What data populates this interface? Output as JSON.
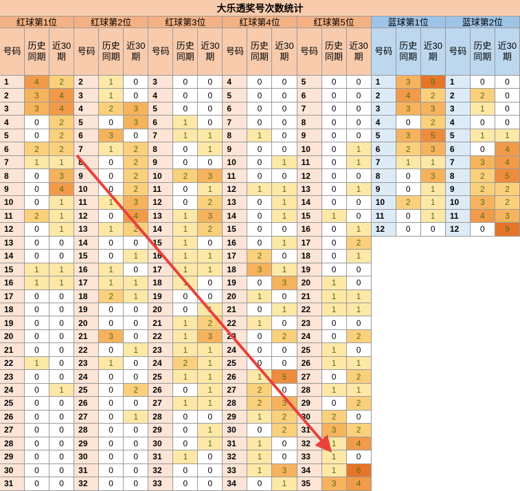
{
  "title": "大乐透奖号次数统计",
  "groups": [
    {
      "name": "红球第1位",
      "columns": [
        "号码",
        "历史同期",
        "近30期"
      ],
      "rows": [
        [
          1,
          4,
          2
        ],
        [
          2,
          3,
          4
        ],
        [
          3,
          3,
          4
        ],
        [
          4,
          0,
          2
        ],
        [
          5,
          0,
          2
        ],
        [
          6,
          2,
          2
        ],
        [
          7,
          1,
          1
        ],
        [
          8,
          0,
          3
        ],
        [
          9,
          0,
          4
        ],
        [
          10,
          0,
          1
        ],
        [
          11,
          2,
          1
        ],
        [
          12,
          0,
          1
        ],
        [
          13,
          0,
          0
        ],
        [
          14,
          0,
          0
        ],
        [
          15,
          1,
          1
        ],
        [
          16,
          1,
          1
        ],
        [
          17,
          0,
          0
        ],
        [
          18,
          0,
          0
        ],
        [
          19,
          0,
          0
        ],
        [
          20,
          0,
          0
        ],
        [
          21,
          0,
          0
        ],
        [
          22,
          1,
          0
        ],
        [
          23,
          0,
          0
        ],
        [
          24,
          0,
          1
        ],
        [
          25,
          0,
          0
        ],
        [
          26,
          0,
          0
        ],
        [
          27,
          0,
          0
        ],
        [
          28,
          0,
          0
        ],
        [
          29,
          0,
          0
        ],
        [
          30,
          0,
          0
        ],
        [
          31,
          0,
          0
        ]
      ]
    },
    {
      "name": "红球第2位",
      "columns": [
        "号码",
        "历史同期",
        "近30期"
      ],
      "rows": [
        [
          2,
          1,
          0
        ],
        [
          3,
          1,
          0
        ],
        [
          4,
          2,
          3
        ],
        [
          5,
          0,
          3
        ],
        [
          6,
          3,
          0
        ],
        [
          7,
          1,
          2
        ],
        [
          8,
          0,
          2
        ],
        [
          9,
          0,
          2
        ],
        [
          10,
          0,
          2
        ],
        [
          11,
          1,
          3
        ],
        [
          12,
          0,
          4
        ],
        [
          13,
          1,
          2
        ],
        [
          14,
          0,
          0
        ],
        [
          15,
          0,
          1
        ],
        [
          16,
          1,
          0
        ],
        [
          17,
          1,
          1
        ],
        [
          18,
          2,
          1
        ],
        [
          19,
          0,
          0
        ],
        [
          20,
          0,
          0
        ],
        [
          21,
          3,
          0
        ],
        [
          22,
          0,
          1
        ],
        [
          23,
          1,
          0
        ],
        [
          24,
          0,
          0
        ],
        [
          25,
          0,
          2
        ],
        [
          26,
          0,
          0
        ],
        [
          27,
          0,
          1
        ],
        [
          28,
          0,
          0
        ],
        [
          29,
          0,
          0
        ],
        [
          30,
          0,
          0
        ],
        [
          31,
          0,
          0
        ],
        [
          32,
          0,
          0
        ]
      ]
    },
    {
      "name": "红球第3位",
      "columns": [
        "号码",
        "历史同期",
        "近30期"
      ],
      "rows": [
        [
          3,
          0,
          0
        ],
        [
          4,
          0,
          0
        ],
        [
          5,
          0,
          0
        ],
        [
          6,
          1,
          0
        ],
        [
          7,
          1,
          1
        ],
        [
          8,
          0,
          1
        ],
        [
          9,
          0,
          0
        ],
        [
          10,
          2,
          3
        ],
        [
          11,
          0,
          1
        ],
        [
          12,
          0,
          2
        ],
        [
          13,
          1,
          3
        ],
        [
          14,
          1,
          2
        ],
        [
          15,
          1,
          0
        ],
        [
          16,
          1,
          1
        ],
        [
          17,
          1,
          1
        ],
        [
          18,
          1,
          0
        ],
        [
          19,
          0,
          0
        ],
        [
          20,
          0,
          1
        ],
        [
          21,
          1,
          2
        ],
        [
          22,
          1,
          3
        ],
        [
          23,
          1,
          1
        ],
        [
          24,
          2,
          1
        ],
        [
          25,
          1,
          1
        ],
        [
          26,
          0,
          1
        ],
        [
          27,
          1,
          1
        ],
        [
          28,
          0,
          0
        ],
        [
          29,
          0,
          1
        ],
        [
          30,
          0,
          1
        ],
        [
          31,
          1,
          0
        ],
        [
          32,
          0,
          0
        ],
        [
          33,
          0,
          0
        ]
      ]
    },
    {
      "name": "红球第4位",
      "columns": [
        "号码",
        "历史同期",
        "近30期"
      ],
      "rows": [
        [
          4,
          0,
          0
        ],
        [
          5,
          0,
          0
        ],
        [
          6,
          0,
          0
        ],
        [
          7,
          0,
          0
        ],
        [
          8,
          1,
          0
        ],
        [
          9,
          0,
          0
        ],
        [
          10,
          0,
          1
        ],
        [
          11,
          0,
          0
        ],
        [
          12,
          1,
          1
        ],
        [
          13,
          0,
          1
        ],
        [
          14,
          0,
          1
        ],
        [
          15,
          0,
          0
        ],
        [
          16,
          0,
          1
        ],
        [
          17,
          2,
          0
        ],
        [
          18,
          3,
          1
        ],
        [
          19,
          0,
          3
        ],
        [
          20,
          1,
          0
        ],
        [
          21,
          0,
          1
        ],
        [
          22,
          1,
          0
        ],
        [
          23,
          0,
          2
        ],
        [
          24,
          0,
          0
        ],
        [
          25,
          0,
          0
        ],
        [
          26,
          1,
          5
        ],
        [
          27,
          2,
          0
        ],
        [
          28,
          2,
          3
        ],
        [
          29,
          1,
          2
        ],
        [
          30,
          0,
          2
        ],
        [
          31,
          1,
          0
        ],
        [
          32,
          1,
          0
        ],
        [
          33,
          1,
          3
        ],
        [
          34,
          0,
          1
        ]
      ]
    },
    {
      "name": "红球第5位",
      "columns": [
        "号码",
        "历史同期",
        "近30期"
      ],
      "rows": [
        [
          5,
          0,
          0
        ],
        [
          6,
          0,
          0
        ],
        [
          7,
          0,
          0
        ],
        [
          8,
          0,
          0
        ],
        [
          9,
          0,
          0
        ],
        [
          10,
          0,
          1
        ],
        [
          11,
          0,
          1
        ],
        [
          12,
          0,
          0
        ],
        [
          13,
          0,
          1
        ],
        [
          14,
          0,
          0
        ],
        [
          15,
          1,
          0
        ],
        [
          16,
          0,
          1
        ],
        [
          17,
          0,
          2
        ],
        [
          18,
          0,
          1
        ],
        [
          19,
          0,
          0
        ],
        [
          20,
          1,
          0
        ],
        [
          21,
          1,
          1
        ],
        [
          22,
          1,
          1
        ],
        [
          23,
          0,
          0
        ],
        [
          24,
          0,
          2
        ],
        [
          25,
          1,
          0
        ],
        [
          26,
          1,
          1
        ],
        [
          27,
          0,
          2
        ],
        [
          28,
          1,
          1
        ],
        [
          29,
          0,
          2
        ],
        [
          30,
          2,
          0
        ],
        [
          31,
          3,
          2
        ],
        [
          32,
          1,
          4
        ],
        [
          33,
          1,
          0
        ],
        [
          34,
          1,
          6
        ],
        [
          35,
          3,
          4
        ]
      ]
    },
    {
      "name": "蓝球第1位",
      "columns": [
        "号码",
        "历史同期",
        "近30期"
      ],
      "rows": [
        [
          1,
          3,
          8
        ],
        [
          2,
          4,
          2
        ],
        [
          3,
          3,
          3
        ],
        [
          4,
          0,
          2
        ],
        [
          5,
          3,
          5
        ],
        [
          6,
          2,
          3
        ],
        [
          7,
          1,
          1
        ],
        [
          8,
          0,
          3
        ],
        [
          9,
          0,
          1
        ],
        [
          10,
          2,
          1
        ],
        [
          11,
          0,
          1
        ],
        [
          12,
          0,
          0
        ]
      ]
    },
    {
      "name": "蓝球第2位",
      "columns": [
        "号码",
        "历史同期",
        "近30期"
      ],
      "rows": [
        [
          1,
          0,
          0
        ],
        [
          2,
          2,
          0
        ],
        [
          3,
          1,
          0
        ],
        [
          4,
          0,
          0
        ],
        [
          5,
          1,
          1
        ],
        [
          6,
          0,
          4
        ],
        [
          7,
          3,
          4
        ],
        [
          8,
          2,
          5
        ],
        [
          9,
          2,
          2
        ],
        [
          10,
          3,
          2
        ],
        [
          11,
          4,
          3
        ],
        [
          12,
          0,
          9
        ]
      ]
    }
  ]
}
